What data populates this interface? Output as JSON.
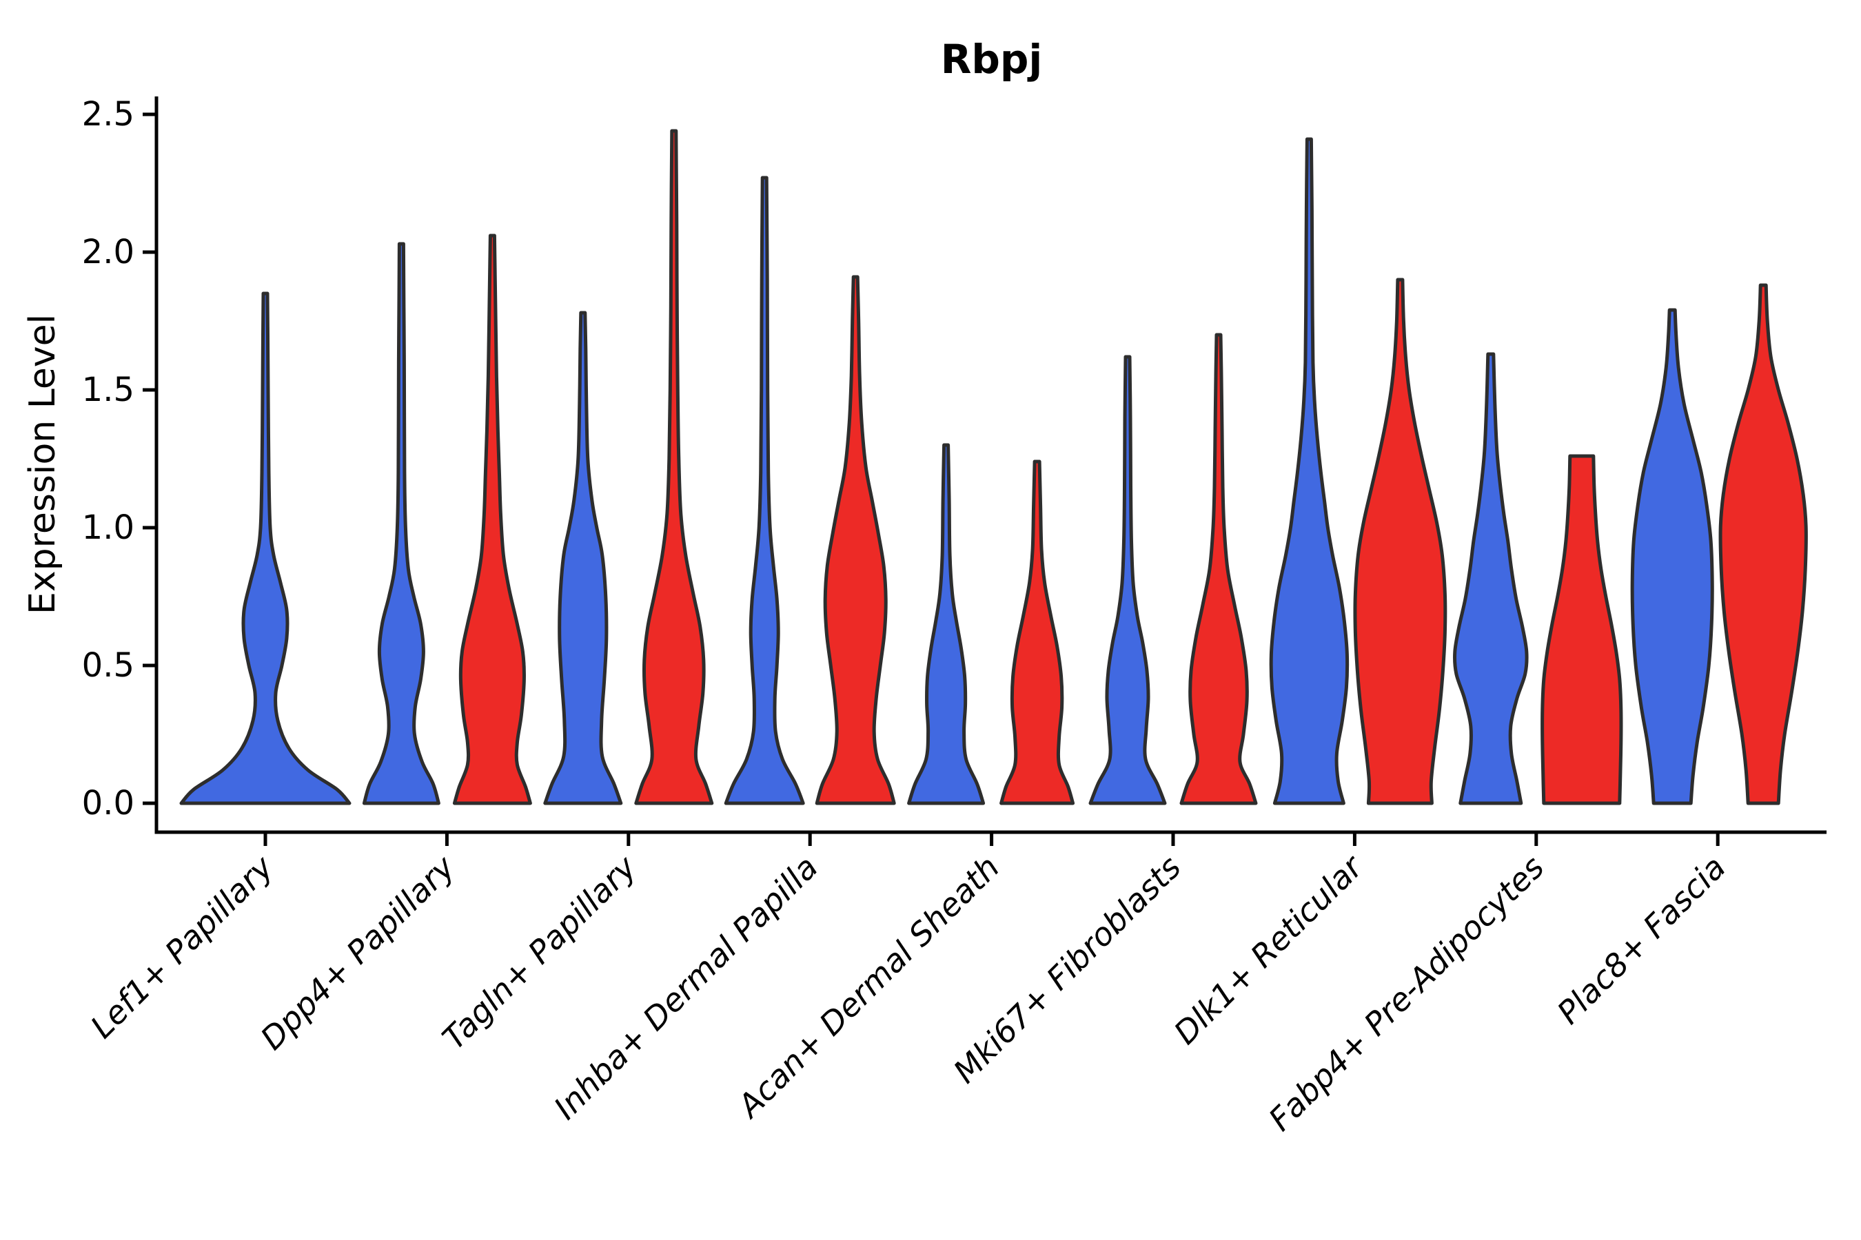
{
  "title": "Rbpj",
  "ylabel": "Expression Level",
  "chart_data": {
    "type": "violin",
    "title": "Rbpj",
    "xlabel": "",
    "ylabel": "Expression Level",
    "ylim": [
      0,
      2.5
    ],
    "yticks": [
      0.0,
      0.5,
      1.0,
      1.5,
      2.0,
      2.5
    ],
    "ytick_labels": [
      "0.0",
      "0.5",
      "1.0",
      "1.5",
      "2.0",
      "2.5"
    ],
    "grid": false,
    "legend": "none",
    "categories": [
      "Lef1+ Papillary",
      "Dpp4+ Papillary",
      "Tagln+ Papillary",
      "Inhba+ Dermal Papilla",
      "Acan+ Dermal Sheath",
      "Mki67+ Fibroblasts",
      "Dlk1+ Reticular",
      "Fabp4+ Pre-Adipocytes",
      "Plac8+ Fascia"
    ],
    "series_colors": {
      "blue": "#4169E1",
      "red": "#ED2A26"
    },
    "outline_color": "#2D2D2D",
    "violins": [
      {
        "category_index": 0,
        "series": "blue",
        "position": "center",
        "max_value": 1.85,
        "flat_top": false,
        "profile": [
          [
            0,
            122
          ],
          [
            0.05,
            104
          ],
          [
            0.12,
            62
          ],
          [
            0.2,
            34
          ],
          [
            0.3,
            18
          ],
          [
            0.4,
            15
          ],
          [
            0.5,
            24
          ],
          [
            0.6,
            31
          ],
          [
            0.7,
            31
          ],
          [
            0.8,
            22
          ],
          [
            0.9,
            12
          ],
          [
            1.0,
            7
          ],
          [
            1.2,
            5
          ],
          [
            1.5,
            4
          ],
          [
            1.7,
            3.5
          ],
          [
            1.85,
            3
          ]
        ]
      },
      {
        "category_index": 1,
        "series": "blue",
        "position": "left",
        "max_value": 2.03,
        "flat_top": false,
        "profile": [
          [
            0,
            54
          ],
          [
            0.07,
            46
          ],
          [
            0.15,
            30
          ],
          [
            0.25,
            19
          ],
          [
            0.35,
            20
          ],
          [
            0.45,
            28
          ],
          [
            0.55,
            32
          ],
          [
            0.65,
            28
          ],
          [
            0.75,
            18
          ],
          [
            0.85,
            10
          ],
          [
            1.0,
            6
          ],
          [
            1.2,
            4.5
          ],
          [
            1.6,
            4
          ],
          [
            1.8,
            3.5
          ],
          [
            2.03,
            3
          ]
        ]
      },
      {
        "category_index": 1,
        "series": "red",
        "position": "right",
        "max_value": 2.06,
        "flat_top": false,
        "profile": [
          [
            0,
            55
          ],
          [
            0.06,
            48
          ],
          [
            0.14,
            36
          ],
          [
            0.22,
            36
          ],
          [
            0.32,
            42
          ],
          [
            0.45,
            46
          ],
          [
            0.55,
            44
          ],
          [
            0.65,
            36
          ],
          [
            0.78,
            24
          ],
          [
            0.9,
            16
          ],
          [
            1.05,
            12
          ],
          [
            1.2,
            10
          ],
          [
            1.35,
            8
          ],
          [
            1.55,
            6
          ],
          [
            1.8,
            4.5
          ],
          [
            2.06,
            3
          ]
        ]
      },
      {
        "category_index": 2,
        "series": "blue",
        "position": "left",
        "max_value": 1.78,
        "flat_top": false,
        "profile": [
          [
            0,
            55
          ],
          [
            0.07,
            45
          ],
          [
            0.17,
            28
          ],
          [
            0.3,
            27
          ],
          [
            0.45,
            31
          ],
          [
            0.6,
            34
          ],
          [
            0.75,
            33
          ],
          [
            0.9,
            28
          ],
          [
            1.0,
            20
          ],
          [
            1.1,
            13
          ],
          [
            1.25,
            7
          ],
          [
            1.45,
            5
          ],
          [
            1.65,
            4
          ],
          [
            1.78,
            3
          ]
        ]
      },
      {
        "category_index": 2,
        "series": "red",
        "position": "right",
        "max_value": 2.44,
        "flat_top": false,
        "profile": [
          [
            0,
            55
          ],
          [
            0.07,
            46
          ],
          [
            0.16,
            32
          ],
          [
            0.28,
            36
          ],
          [
            0.4,
            42
          ],
          [
            0.52,
            43
          ],
          [
            0.64,
            38
          ],
          [
            0.76,
            28
          ],
          [
            0.9,
            17
          ],
          [
            1.05,
            10
          ],
          [
            1.25,
            7
          ],
          [
            1.5,
            5.5
          ],
          [
            1.8,
            4.5
          ],
          [
            2.1,
            4
          ],
          [
            2.44,
            3
          ]
        ]
      },
      {
        "category_index": 3,
        "series": "blue",
        "position": "left",
        "max_value": 2.27,
        "flat_top": false,
        "profile": [
          [
            0,
            56
          ],
          [
            0.07,
            45
          ],
          [
            0.16,
            26
          ],
          [
            0.26,
            16
          ],
          [
            0.38,
            15
          ],
          [
            0.5,
            18
          ],
          [
            0.62,
            20
          ],
          [
            0.74,
            18
          ],
          [
            0.86,
            13
          ],
          [
            1.0,
            8
          ],
          [
            1.2,
            5.5
          ],
          [
            1.5,
            4.5
          ],
          [
            1.9,
            4
          ],
          [
            2.27,
            3
          ]
        ]
      },
      {
        "category_index": 3,
        "series": "red",
        "position": "right",
        "max_value": 1.91,
        "flat_top": false,
        "profile": [
          [
            0,
            56
          ],
          [
            0.07,
            48
          ],
          [
            0.16,
            32
          ],
          [
            0.26,
            27
          ],
          [
            0.38,
            30
          ],
          [
            0.5,
            36
          ],
          [
            0.62,
            42
          ],
          [
            0.74,
            44
          ],
          [
            0.86,
            41
          ],
          [
            0.98,
            33
          ],
          [
            1.1,
            24
          ],
          [
            1.22,
            15
          ],
          [
            1.38,
            9
          ],
          [
            1.55,
            6
          ],
          [
            1.75,
            4.5
          ],
          [
            1.91,
            3
          ]
        ]
      },
      {
        "category_index": 4,
        "series": "blue",
        "position": "left",
        "max_value": 1.3,
        "flat_top": false,
        "profile": [
          [
            0,
            54
          ],
          [
            0.07,
            45
          ],
          [
            0.16,
            29
          ],
          [
            0.26,
            26
          ],
          [
            0.36,
            28
          ],
          [
            0.46,
            27
          ],
          [
            0.56,
            22
          ],
          [
            0.66,
            15
          ],
          [
            0.76,
            9
          ],
          [
            0.9,
            5.5
          ],
          [
            1.1,
            4.5
          ],
          [
            1.3,
            3
          ]
        ]
      },
      {
        "category_index": 4,
        "series": "red",
        "position": "right",
        "max_value": 1.24,
        "flat_top": false,
        "profile": [
          [
            0,
            52
          ],
          [
            0.06,
            45
          ],
          [
            0.14,
            32
          ],
          [
            0.24,
            32
          ],
          [
            0.35,
            36
          ],
          [
            0.46,
            35
          ],
          [
            0.57,
            29
          ],
          [
            0.68,
            20
          ],
          [
            0.8,
            11
          ],
          [
            0.92,
            6.5
          ],
          [
            1.08,
            5
          ],
          [
            1.24,
            3.5
          ]
        ]
      },
      {
        "category_index": 5,
        "series": "blue",
        "position": "left",
        "max_value": 1.62,
        "flat_top": false,
        "profile": [
          [
            0,
            54
          ],
          [
            0.07,
            43
          ],
          [
            0.16,
            26
          ],
          [
            0.27,
            27
          ],
          [
            0.38,
            30
          ],
          [
            0.48,
            28
          ],
          [
            0.58,
            22
          ],
          [
            0.68,
            14
          ],
          [
            0.8,
            8
          ],
          [
            0.95,
            5.5
          ],
          [
            1.15,
            4.5
          ],
          [
            1.4,
            4
          ],
          [
            1.62,
            3
          ]
        ]
      },
      {
        "category_index": 5,
        "series": "red",
        "position": "right",
        "max_value": 1.7,
        "flat_top": false,
        "profile": [
          [
            0,
            54
          ],
          [
            0.07,
            45
          ],
          [
            0.15,
            31
          ],
          [
            0.25,
            36
          ],
          [
            0.37,
            41
          ],
          [
            0.48,
            40
          ],
          [
            0.6,
            33
          ],
          [
            0.72,
            23
          ],
          [
            0.85,
            13
          ],
          [
            1.0,
            8
          ],
          [
            1.15,
            6
          ],
          [
            1.35,
            5
          ],
          [
            1.55,
            4
          ],
          [
            1.7,
            3
          ]
        ]
      },
      {
        "category_index": 6,
        "series": "blue",
        "position": "left",
        "max_value": 2.41,
        "flat_top": false,
        "profile": [
          [
            0,
            50
          ],
          [
            0.08,
            42
          ],
          [
            0.18,
            40
          ],
          [
            0.3,
            48
          ],
          [
            0.42,
            54
          ],
          [
            0.54,
            55
          ],
          [
            0.66,
            51
          ],
          [
            0.78,
            44
          ],
          [
            0.9,
            34
          ],
          [
            1.0,
            27
          ],
          [
            1.1,
            22
          ],
          [
            1.2,
            17
          ],
          [
            1.32,
            12
          ],
          [
            1.45,
            8
          ],
          [
            1.6,
            5.5
          ],
          [
            1.9,
            4.5
          ],
          [
            2.15,
            4
          ],
          [
            2.41,
            3
          ]
        ]
      },
      {
        "category_index": 6,
        "series": "red",
        "position": "right",
        "max_value": 1.9,
        "flat_top": false,
        "profile": [
          [
            0,
            46
          ],
          [
            0.08,
            45
          ],
          [
            0.2,
            50
          ],
          [
            0.34,
            57
          ],
          [
            0.48,
            62
          ],
          [
            0.62,
            65
          ],
          [
            0.76,
            65
          ],
          [
            0.9,
            61
          ],
          [
            1.02,
            53
          ],
          [
            1.14,
            42
          ],
          [
            1.26,
            31
          ],
          [
            1.38,
            21
          ],
          [
            1.5,
            13
          ],
          [
            1.62,
            8
          ],
          [
            1.75,
            5
          ],
          [
            1.9,
            3.5
          ]
        ]
      },
      {
        "category_index": 7,
        "series": "blue",
        "position": "left",
        "max_value": 1.63,
        "flat_top": false,
        "profile": [
          [
            0,
            44
          ],
          [
            0.08,
            38
          ],
          [
            0.18,
            30
          ],
          [
            0.28,
            29
          ],
          [
            0.38,
            38
          ],
          [
            0.47,
            50
          ],
          [
            0.55,
            52
          ],
          [
            0.64,
            46
          ],
          [
            0.74,
            37
          ],
          [
            0.85,
            30
          ],
          [
            0.95,
            25
          ],
          [
            1.05,
            19
          ],
          [
            1.15,
            14
          ],
          [
            1.28,
            9
          ],
          [
            1.45,
            6
          ],
          [
            1.63,
            4
          ]
        ]
      },
      {
        "category_index": 7,
        "series": "red",
        "position": "right",
        "max_value": 1.26,
        "flat_top": true,
        "profile": [
          [
            0,
            55
          ],
          [
            0.1,
            56
          ],
          [
            0.22,
            57
          ],
          [
            0.34,
            57
          ],
          [
            0.45,
            55
          ],
          [
            0.55,
            50
          ],
          [
            0.65,
            43
          ],
          [
            0.75,
            35
          ],
          [
            0.85,
            28
          ],
          [
            0.95,
            23
          ],
          [
            1.05,
            20
          ],
          [
            1.15,
            18
          ],
          [
            1.26,
            17
          ]
        ]
      },
      {
        "category_index": 8,
        "series": "blue",
        "position": "left",
        "max_value": 1.79,
        "flat_top": false,
        "profile": [
          [
            0,
            27
          ],
          [
            0.1,
            30
          ],
          [
            0.22,
            36
          ],
          [
            0.35,
            45
          ],
          [
            0.5,
            53
          ],
          [
            0.65,
            57
          ],
          [
            0.8,
            58
          ],
          [
            0.95,
            56
          ],
          [
            1.08,
            50
          ],
          [
            1.2,
            42
          ],
          [
            1.32,
            30
          ],
          [
            1.45,
            17
          ],
          [
            1.58,
            9
          ],
          [
            1.7,
            5.5
          ],
          [
            1.79,
            4
          ]
        ]
      },
      {
        "category_index": 8,
        "series": "red",
        "position": "right",
        "max_value": 1.88,
        "flat_top": false,
        "profile": [
          [
            0,
            22
          ],
          [
            0.12,
            25
          ],
          [
            0.25,
            31
          ],
          [
            0.4,
            41
          ],
          [
            0.55,
            50
          ],
          [
            0.7,
            57
          ],
          [
            0.85,
            61
          ],
          [
            1.0,
            62
          ],
          [
            1.12,
            58
          ],
          [
            1.25,
            49
          ],
          [
            1.38,
            36
          ],
          [
            1.5,
            22
          ],
          [
            1.62,
            11
          ],
          [
            1.75,
            6
          ],
          [
            1.88,
            4
          ]
        ]
      }
    ]
  }
}
